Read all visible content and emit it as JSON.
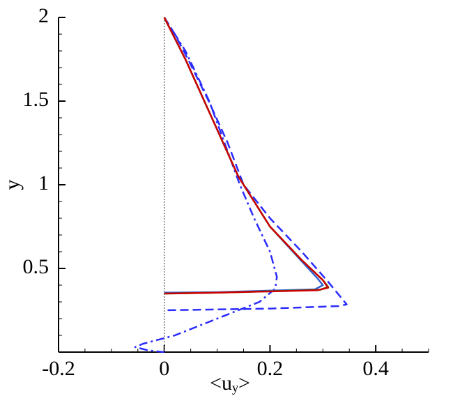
{
  "chart_data": {
    "type": "line",
    "xlabel": [
      "<u",
      "y",
      ">"
    ],
    "ylabel": "y",
    "xlim": [
      -0.2,
      0.5
    ],
    "ylim": [
      0,
      2
    ],
    "xticks": [
      -0.2,
      0,
      0.2,
      0.4
    ],
    "yticks": [
      0.5,
      1,
      1.5,
      2
    ],
    "vline_x": 0,
    "series": [
      {
        "color": "#2b2bff",
        "dash": "dashed",
        "x": [
          0,
          0.02,
          0.045,
          0.084,
          0.12,
          0.15,
          0.2,
          0.26,
          0.31,
          0.345,
          0.33,
          0.2,
          0
        ],
        "values": [
          2,
          1.9,
          1.75,
          1.5,
          1.25,
          1.0,
          0.8,
          0.6,
          0.42,
          0.285,
          0.275,
          0.26,
          0.25
        ]
      },
      {
        "color": "#2b2bff",
        "dash": "dashdot",
        "x": [
          0,
          0.04,
          0.085,
          0.143,
          0.17,
          0.2,
          0.213,
          0.21,
          0.18,
          0.1,
          0.02,
          -0.04,
          -0.055,
          -0.03,
          0
        ],
        "values": [
          2,
          1.8,
          1.5,
          1.0,
          0.8,
          0.6,
          0.45,
          0.38,
          0.3,
          0.2,
          0.1,
          0.05,
          0.03,
          0.01,
          0
        ]
      },
      {
        "color": "#3060d0",
        "dash": "solid",
        "x": [
          0,
          0.04,
          0.09,
          0.14,
          0.2,
          0.255,
          0.29,
          0.3,
          0.285,
          0.1,
          0
        ],
        "values": [
          2,
          1.75,
          1.4,
          1.05,
          0.75,
          0.56,
          0.44,
          0.4,
          0.375,
          0.358,
          0.355
        ]
      },
      {
        "color": "#1a9a1a",
        "dash": "solid",
        "x": [
          0,
          0.04,
          0.09,
          0.14,
          0.2,
          0.26,
          0.3,
          0.31,
          0.295,
          0.1,
          0
        ],
        "values": [
          2,
          1.75,
          1.4,
          1.05,
          0.75,
          0.55,
          0.43,
          0.39,
          0.372,
          0.355,
          0.35
        ]
      },
      {
        "color": "#cc0000",
        "dash": "solid",
        "x": [
          0,
          0.04,
          0.09,
          0.14,
          0.2,
          0.26,
          0.3,
          0.31,
          0.29,
          0.1,
          0
        ],
        "values": [
          2,
          1.75,
          1.4,
          1.05,
          0.75,
          0.55,
          0.43,
          0.385,
          0.37,
          0.355,
          0.35
        ]
      }
    ]
  }
}
